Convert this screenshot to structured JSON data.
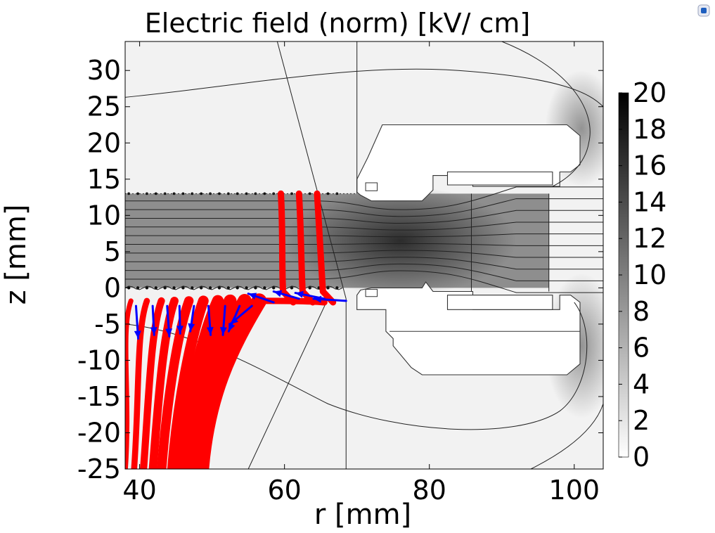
{
  "chart_data": {
    "type": "heatmap",
    "title": "Electric field (norm) [kV/ cm]",
    "xlabel": "r [mm]",
    "ylabel": "z [mm]",
    "xlim": [
      38,
      104
    ],
    "ylim": [
      -25,
      34
    ],
    "x_ticks": [
      {
        "value": 40,
        "label": "40"
      },
      {
        "value": 60,
        "label": "60"
      },
      {
        "value": 80,
        "label": "80"
      },
      {
        "value": 100,
        "label": "100"
      }
    ],
    "y_ticks": [
      {
        "value": 30,
        "label": "30"
      },
      {
        "value": 25,
        "label": "25"
      },
      {
        "value": 20,
        "label": "20"
      },
      {
        "value": 15,
        "label": "15"
      },
      {
        "value": 10,
        "label": "10"
      },
      {
        "value": 5,
        "label": "5"
      },
      {
        "value": 0,
        "label": "0"
      },
      {
        "value": -5,
        "label": "-5"
      },
      {
        "value": -10,
        "label": "-10"
      },
      {
        "value": -15,
        "label": "-15"
      },
      {
        "value": -20,
        "label": "-20"
      },
      {
        "value": -25,
        "label": "-25"
      }
    ],
    "colorbar": {
      "min": 0,
      "max": 20,
      "colormap": "white-to-black grayscale",
      "ticks": [
        {
          "value": 20,
          "label": "20"
        },
        {
          "value": 18,
          "label": "18"
        },
        {
          "value": 16,
          "label": "16"
        },
        {
          "value": 14,
          "label": "14"
        },
        {
          "value": 12,
          "label": "12"
        },
        {
          "value": 10,
          "label": "10"
        },
        {
          "value": 8,
          "label": "8"
        },
        {
          "value": 6,
          "label": "6"
        },
        {
          "value": 4,
          "label": "4"
        },
        {
          "value": 2,
          "label": "2"
        },
        {
          "value": 0,
          "label": "0"
        }
      ]
    },
    "colors": {
      "trajectories": "#ff0000",
      "arrows": "#0000ff",
      "contours": "#222222",
      "gap_field": "#8e8e8e",
      "background_field": "#efefef"
    },
    "gap_region": {
      "r": [
        38,
        96.5
      ],
      "z": [
        0,
        13
      ],
      "field_kV_per_cm": 9
    },
    "field_lines_z": [
      1.2,
      2.4,
      3.6,
      4.8,
      6.0,
      7.2,
      8.4,
      9.6,
      10.8,
      12.0
    ],
    "electrodes": [
      {
        "name": "upper electrode body",
        "r": [
          70,
          101
        ],
        "z": [
          13,
          22.5
        ]
      },
      {
        "name": "lower electrode body",
        "r": [
          70,
          101
        ],
        "z": [
          -12,
          -0.5
        ]
      },
      {
        "name": "upper inner step",
        "r": [
          86,
          98
        ],
        "z": [
          13,
          16
        ]
      },
      {
        "name": "lower inner step",
        "r": [
          86,
          98
        ],
        "z": [
          -3,
          -0.5
        ]
      }
    ],
    "upper_trajectories": [
      {
        "r0": 59.5,
        "z0": 13,
        "r1": 60,
        "z1": -2
      },
      {
        "r0": 62,
        "z0": 13,
        "r1": 62.7,
        "z1": -2
      },
      {
        "r0": 64.5,
        "z0": 13,
        "r1": 65.5,
        "z1": -2
      }
    ],
    "lower_trajectories": [
      {
        "r_top": 38.8,
        "r_bottom": 38.0
      },
      {
        "r_top": 41.0,
        "r_bottom": 39.2
      },
      {
        "r_top": 43.0,
        "r_bottom": 40.5
      },
      {
        "r_top": 44.8,
        "r_bottom": 41.8
      },
      {
        "r_top": 46.8,
        "r_bottom": 43.0
      },
      {
        "r_top": 48.8,
        "r_bottom": 44.5
      },
      {
        "r_top": 50.8,
        "r_bottom": 45.8
      },
      {
        "r_top": 52.5,
        "r_bottom": 47.0
      },
      {
        "r_top": 54.5,
        "r_bottom": 47.8
      },
      {
        "r_top": 56.5,
        "r_bottom": 48.5
      }
    ],
    "arrows": [
      {
        "r": 39.5,
        "z": -2.5,
        "dr": 0.3,
        "dz": -4.5
      },
      {
        "r": 41.8,
        "z": -2.5,
        "dr": 0.2,
        "dz": -4.0
      },
      {
        "r": 43.8,
        "z": -2.5,
        "dr": 0.3,
        "dz": -4.2
      },
      {
        "r": 45.5,
        "z": -2.5,
        "dr": 0.1,
        "dz": -3.8
      },
      {
        "r": 47.5,
        "z": -2.5,
        "dr": -0.5,
        "dz": -3.5
      },
      {
        "r": 49.5,
        "z": -2.5,
        "dr": 0.3,
        "dz": -4.0
      },
      {
        "r": 51.8,
        "z": -2.5,
        "dr": -0.3,
        "dz": -4.0
      },
      {
        "r": 53.8,
        "z": -2.5,
        "dr": -1.5,
        "dz": -3.5
      },
      {
        "r": 55.5,
        "z": -2.5,
        "dr": -3.0,
        "dz": -2.5
      },
      {
        "r": 58.5,
        "z": -2.0,
        "dr": -3.5,
        "dz": 1.2
      },
      {
        "r": 62.0,
        "z": -1.5,
        "dr": -3.5,
        "dz": 1.0
      },
      {
        "r": 65.5,
        "z": -1.5,
        "dr": -4.0,
        "dz": 0.8
      },
      {
        "r": 68.5,
        "z": -1.8,
        "dr": -4.5,
        "dz": 0.3
      }
    ]
  }
}
